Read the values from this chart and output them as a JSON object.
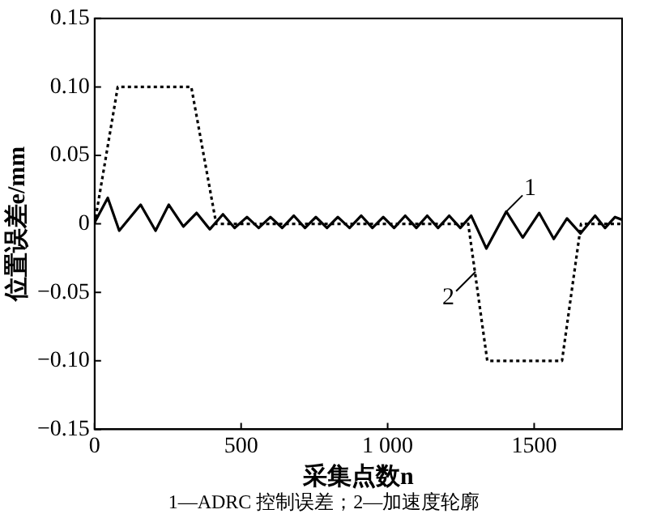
{
  "chart_data": {
    "type": "line",
    "xlabel": "采集点数n",
    "ylabel": "位置误差e/mm",
    "xlim": [
      0,
      1800
    ],
    "xticks": [
      0,
      500,
      {
        "value": 1000,
        "label": "1 000"
      },
      1500
    ],
    "ylim": [
      -0.15,
      0.15
    ],
    "yticks": [
      {
        "value": -0.15,
        "label": "−0.15"
      },
      {
        "value": -0.1,
        "label": "−0.10"
      },
      {
        "value": -0.05,
        "label": "−0.05"
      },
      0,
      {
        "value": 0.05,
        "label": "0.05"
      },
      {
        "value": 0.1,
        "label": "0.10"
      },
      {
        "value": 0.15,
        "label": "0.15"
      }
    ],
    "grid": false,
    "legend": false,
    "marker": "none",
    "series": [
      {
        "color": "#000000",
        "line_style": "solid",
        "x": [
          0,
          45,
          84,
          157,
          208,
          253,
          303,
          348,
          393,
          438,
          478,
          520,
          560,
          600,
          640,
          680,
          718,
          755,
          793,
          830,
          870,
          910,
          948,
          985,
          1022,
          1060,
          1098,
          1135,
          1172,
          1210,
          1248,
          1285,
          1337,
          1405,
          1461,
          1517,
          1567,
          1612,
          1658,
          1708,
          1742,
          1776,
          1800
        ],
        "values": [
          0.001,
          0.019,
          -0.005,
          0.014,
          -0.005,
          0.014,
          -0.002,
          0.008,
          -0.004,
          0.007,
          -0.003,
          0.005,
          -0.003,
          0.005,
          -0.003,
          0.006,
          -0.003,
          0.005,
          -0.003,
          0.005,
          -0.003,
          0.006,
          -0.003,
          0.005,
          -0.003,
          0.006,
          -0.003,
          0.006,
          -0.003,
          0.006,
          -0.003,
          0.006,
          -0.018,
          0.009,
          -0.01,
          0.008,
          -0.011,
          0.004,
          -0.007,
          0.006,
          -0.003,
          0.005,
          0.003
        ]
      },
      {
        "color": "#000000",
        "line_style": "dotted",
        "x": [
          0,
          79,
          330,
          415,
          1275,
          1340,
          1595,
          1660,
          1800
        ],
        "values": [
          0,
          0.1,
          0.1,
          0,
          0,
          -0.1,
          -0.1,
          0,
          0
        ]
      }
    ],
    "annotations": [
      {
        "text": "1",
        "x": 1405,
        "y": 0.009
      },
      {
        "text": "2",
        "x": 1300,
        "y": -0.035
      },
      "1—ADRC 控制误差；2—加速度轮廓"
    ]
  }
}
